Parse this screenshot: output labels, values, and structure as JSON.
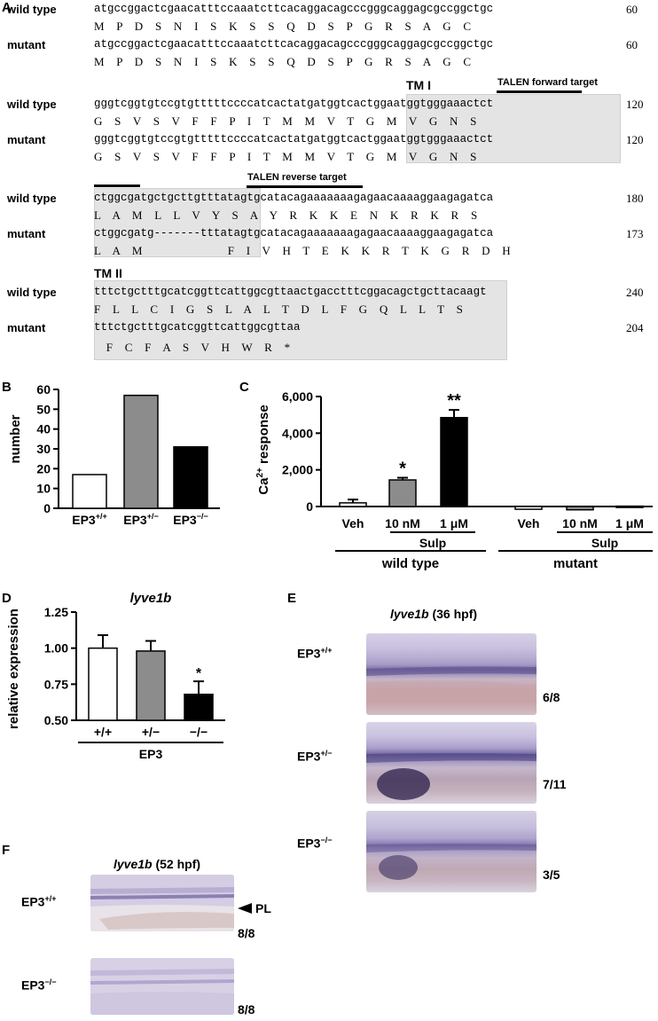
{
  "panelA": {
    "label": "A",
    "rows": [
      {
        "wt_label": "wild type",
        "wt_nt": "atgccggactcgaacatttccaaatcttcacaggacagcccgggcaggagcgccggctgc",
        "wt_num": "60",
        "wt_aa": "M P D S N I S K S S Q D S P G R S A G C",
        "mut_label": "mutant",
        "mut_nt": "atgccggactcgaacatttccaaatcttcacaggacagcccgggcaggagcgccggctgc",
        "mut_num": "60",
        "mut_aa": "M P D S N I S K S S Q D S P G R S A G C"
      },
      {
        "wt_label": "wild type",
        "wt_nt": "gggtcggtgtccgtgtttttccccatcactatgatggtcactggaatggtgggaaactct",
        "wt_num": "120",
        "wt_aa": "G S V S V F F P I T M M V T G M V G N S",
        "mut_label": "mutant",
        "mut_nt": "gggtcggtgtccgtgtttttccccatcactatgatggtcactggaatggtgggaaactct",
        "mut_num": "120",
        "mut_aa": "G S V S V F F P I T M M V T G M V G N S"
      },
      {
        "wt_label": "wild type",
        "wt_nt": "ctggcgatgctgcttgtttatagtgcatacagaaaaaaagagaacaaaaggaagagatca",
        "wt_num": "180",
        "wt_aa": "L A M L L V Y S A Y R K K E N K R K R S",
        "mut_label": "mutant",
        "mut_nt": "ctggcgatg-------tttatagtgcatacagaaaaaaagagaacaaaaggaagagatca",
        "mut_num": "173",
        "mut_aa": "L A M       F I V H T E K K R T K G R D H"
      },
      {
        "wt_label": "wild type",
        "wt_nt": "tttctgctttgcatcggttcattggcgttaactgacctttcggacagctgcttacaagt",
        "wt_num": "240",
        "wt_aa": "F L L C I G S L A L T D L F G Q L L T S",
        "mut_label": "mutant",
        "mut_nt": "tttctgctttgcatcggttcattggcgttaa",
        "mut_num": "204",
        "mut_aa": " F C F A S V H W R *"
      }
    ],
    "tm1": "TM I",
    "tm2": "TM II",
    "talen_forward": "TALEN forward target",
    "talen_reverse": "TALEN reverse target"
  },
  "panelB": {
    "label": "B",
    "chart_data": {
      "type": "bar",
      "ylabel": "number",
      "ylim": [
        0,
        60
      ],
      "yticks": [
        "0",
        "10",
        "20",
        "30",
        "40",
        "50",
        "60"
      ],
      "categories": [
        "EP3+/+",
        "EP3+/−",
        "EP3−/−"
      ],
      "values": [
        17,
        57,
        31
      ],
      "colors": [
        "#ffffff",
        "#8c8c8c",
        "#000000"
      ]
    },
    "cat_base": "EP3",
    "cat_sup": [
      "+/+",
      "+/−",
      "−/−"
    ]
  },
  "panelC": {
    "label": "C",
    "chart_data": {
      "type": "bar",
      "ylabel": "Ca2+ response",
      "ylim": [
        0,
        6000
      ],
      "yticks": [
        "0",
        "2,000",
        "4,000",
        "6,000"
      ],
      "categories": [
        "Veh",
        "10 nM",
        "1 μM",
        "Veh",
        "10 nM",
        "1 μM"
      ],
      "values": [
        200,
        1450,
        4850,
        -150,
        -180,
        20
      ],
      "errors": [
        180,
        120,
        420,
        0,
        0,
        0
      ],
      "colors": [
        "#ffffff",
        "#8c8c8c",
        "#000000",
        "#ffffff",
        "#8c8c8c",
        "#000000"
      ],
      "significance": [
        "",
        "*",
        "**",
        "",
        "",
        ""
      ]
    },
    "ylabel_base": "Ca",
    "ylabel_sup": "2+",
    "ylabel_rest": " response",
    "groups": {
      "sulp1": "Sulp",
      "sulp2": "Sulp",
      "wt": "wild type",
      "mut": "mutant"
    }
  },
  "panelD": {
    "label": "D",
    "chart_data": {
      "type": "bar",
      "title": "lyve1b",
      "ylabel": "relative expression",
      "ylim": [
        0.5,
        1.25
      ],
      "yticks": [
        "0.50",
        "0.75",
        "1.00",
        "1.25"
      ],
      "categories": [
        "+/+",
        "+/−",
        "−/−"
      ],
      "values": [
        1.0,
        0.98,
        0.68
      ],
      "errors": [
        0.09,
        0.07,
        0.09
      ],
      "colors": [
        "#ffffff",
        "#8c8c8c",
        "#000000"
      ],
      "significance": [
        "",
        "",
        "*"
      ],
      "xgroup": "EP3"
    }
  },
  "panelE": {
    "label": "E",
    "title_gene": "lyve1b",
    "title_rest": " (36 hpf)",
    "rows": [
      {
        "label_base": "EP3",
        "label_sup": "+/+",
        "ratio": "6/8"
      },
      {
        "label_base": "EP3",
        "label_sup": "+/−",
        "ratio": "7/11"
      },
      {
        "label_base": "EP3",
        "label_sup": "−/−",
        "ratio": "3/5"
      }
    ]
  },
  "panelF": {
    "label": "F",
    "title_gene": "lyve1b",
    "title_rest": " (52 hpf)",
    "pl_label": "PL",
    "rows": [
      {
        "label_base": "EP3",
        "label_sup": "+/+",
        "ratio": "8/8"
      },
      {
        "label_base": "EP3",
        "label_sup": "−/−",
        "ratio": "8/8"
      }
    ]
  }
}
